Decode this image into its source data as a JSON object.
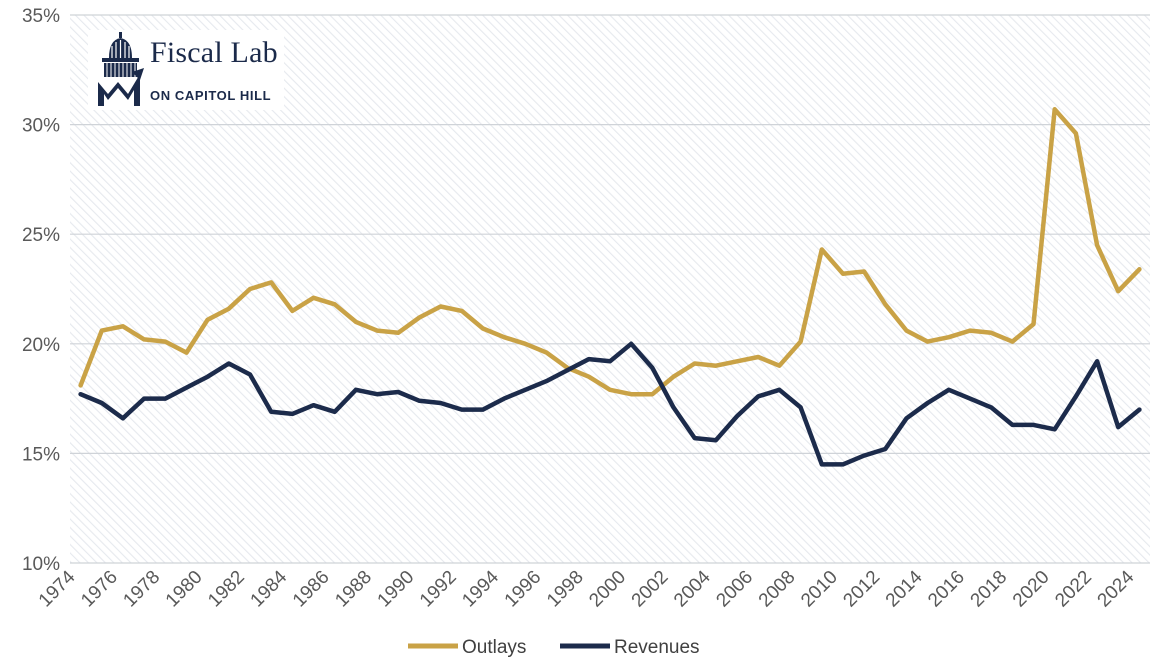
{
  "logo": {
    "title": "Fiscal Lab",
    "subtitle": "ON CAPITOL HILL"
  },
  "colors": {
    "outlays": "#c9a246",
    "revenues": "#1c2b4b",
    "grid": "#cfd3d8",
    "hatch": "#e6e9ee"
  },
  "chart_data": {
    "type": "line",
    "x": [
      1974,
      1975,
      1976,
      1977,
      1978,
      1979,
      1980,
      1981,
      1982,
      1983,
      1984,
      1985,
      1986,
      1987,
      1988,
      1989,
      1990,
      1991,
      1992,
      1993,
      1994,
      1995,
      1996,
      1997,
      1998,
      1999,
      2000,
      2001,
      2002,
      2003,
      2004,
      2005,
      2006,
      2007,
      2008,
      2009,
      2010,
      2011,
      2012,
      2013,
      2014,
      2015,
      2016,
      2017,
      2018,
      2019,
      2020,
      2021,
      2022,
      2023,
      2024
    ],
    "series": [
      {
        "name": "Outlays",
        "values": [
          18.1,
          20.6,
          20.8,
          20.2,
          20.1,
          19.6,
          21.1,
          21.6,
          22.5,
          22.8,
          21.5,
          22.1,
          21.8,
          21.0,
          20.6,
          20.5,
          21.2,
          21.7,
          21.5,
          20.7,
          20.3,
          20.0,
          19.6,
          18.9,
          18.5,
          17.9,
          17.7,
          17.7,
          18.5,
          19.1,
          19.0,
          19.2,
          19.4,
          19.0,
          20.1,
          24.3,
          23.2,
          23.3,
          21.8,
          20.6,
          20.1,
          20.3,
          20.6,
          20.5,
          20.1,
          20.9,
          30.7,
          29.6,
          24.5,
          22.4,
          23.4
        ]
      },
      {
        "name": "Revenues",
        "values": [
          17.7,
          17.3,
          16.6,
          17.5,
          17.5,
          18.0,
          18.5,
          19.1,
          18.6,
          16.9,
          16.8,
          17.2,
          16.9,
          17.9,
          17.7,
          17.8,
          17.4,
          17.3,
          17.0,
          17.0,
          17.5,
          17.9,
          18.3,
          18.8,
          19.3,
          19.2,
          20.0,
          18.9,
          17.1,
          15.7,
          15.6,
          16.7,
          17.6,
          17.9,
          17.1,
          14.5,
          14.5,
          14.9,
          15.2,
          16.6,
          17.3,
          17.9,
          17.5,
          17.1,
          16.3,
          16.3,
          16.1,
          17.6,
          19.2,
          16.2,
          17.0
        ]
      }
    ],
    "y_ticks": [
      "10%",
      "15%",
      "20%",
      "25%",
      "30%",
      "35%"
    ],
    "y_tick_values": [
      10,
      15,
      20,
      25,
      30,
      35
    ],
    "x_ticks": [
      "1974",
      "1976",
      "1978",
      "1980",
      "1982",
      "1984",
      "1986",
      "1988",
      "1990",
      "1992",
      "1994",
      "1996",
      "1998",
      "2000",
      "2002",
      "2004",
      "2006",
      "2008",
      "2010",
      "2012",
      "2014",
      "2016",
      "2018",
      "2020",
      "2022",
      "2024"
    ],
    "ylim": [
      10,
      35
    ],
    "xlim": [
      1974,
      2025
    ],
    "grid": true,
    "legend": "bottom-center"
  }
}
